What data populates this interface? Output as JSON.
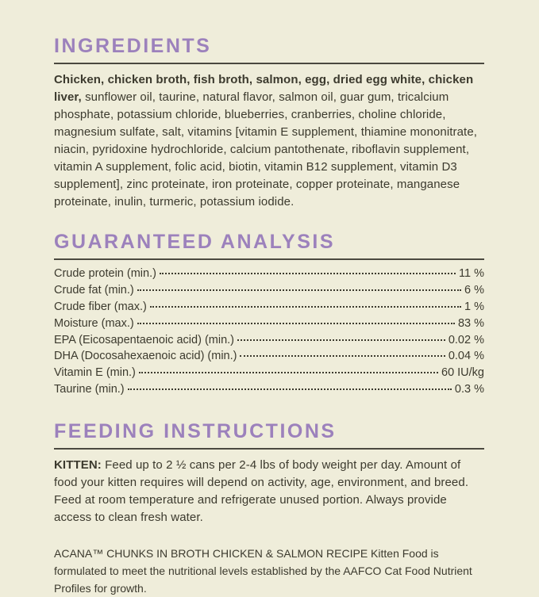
{
  "colors": {
    "background": "#efedda",
    "heading_purple": "#9c81bc",
    "body_text": "#3c3a2e",
    "rule_dark": "#4b4940"
  },
  "ingredients": {
    "heading": "INGREDIENTS",
    "bold_lead": "Chicken, chicken broth, fish broth, salmon, egg, dried egg white, chicken liver,",
    "rest": " sunflower oil, taurine, natural flavor, salmon oil, guar gum, tricalcium phosphate, potassium chloride, blueberries, cranberries, choline chloride, magnesium sulfate, salt, vitamins [vitamin E supplement, thiamine mononitrate, niacin, pyridoxine hydrochloride, calcium pantothenate, riboflavin supplement, vitamin A supplement, folic acid, biotin, vitamin B12 supplement, vitamin D3 supplement], zinc proteinate, iron proteinate, copper proteinate, manganese proteinate, inulin, turmeric, potassium iodide."
  },
  "guaranteed_analysis": {
    "heading": "GUARANTEED ANALYSIS",
    "rows": [
      {
        "label": "Crude protein (min.)",
        "value": "11 %"
      },
      {
        "label": "Crude fat (min.)",
        "value": "6 %"
      },
      {
        "label": "Crude fiber (max.)",
        "value": "1 %"
      },
      {
        "label": "Moisture (max.)",
        "value": "83 %"
      },
      {
        "label": "EPA (Eicosapentaenoic acid) (min.)",
        "value": "0.02 %"
      },
      {
        "label": "DHA (Docosahexaenoic acid) (min.)",
        "value": "0.04 %"
      },
      {
        "label": "Vitamin E (min.)",
        "value": "60 IU/kg"
      },
      {
        "label": "Taurine (min.)",
        "value": "0.3 %"
      }
    ]
  },
  "feeding_instructions": {
    "heading": "FEEDING INSTRUCTIONS",
    "bold_lead": "KITTEN:",
    "body": " Feed up to 2 ½ cans per 2-4 lbs of body weight per day. Amount of food your kitten requires will depend on activity, age, environment, and breed. Feed at room temperature and refrigerate unused portion. Always provide access to clean fresh water.",
    "aafco_note": "ACANA™ CHUNKS IN BROTH CHICKEN & SALMON RECIPE Kitten Food is formulated to meet the nutritional levels established by the AAFCO Cat Food Nutrient Profiles for growth."
  }
}
